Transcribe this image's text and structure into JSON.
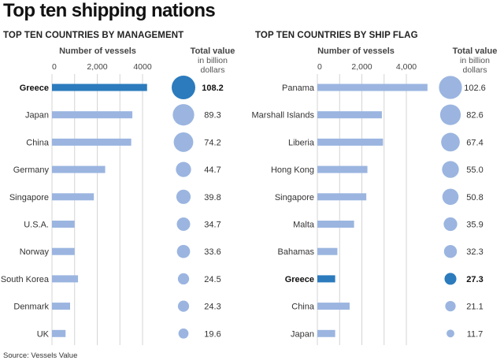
{
  "title": "Top ten shipping nations",
  "source": "Source: Vessels Value",
  "colors": {
    "bar": "#9bb5e0",
    "highlight": "#2b7bbd",
    "grid": "#d4d4d4"
  },
  "value_header": [
    "Total value",
    "in billion",
    "dollars"
  ],
  "chart_data": [
    {
      "type": "bar",
      "orientation": "horizontal",
      "subtitle": "TOP TEN COUNTRIES BY MANAGEMENT",
      "xlabel": "Number of vessels",
      "xlim": [
        0,
        4000
      ],
      "xticks": [
        0,
        2000,
        4000
      ],
      "xtick_labels": [
        "0",
        "2,000",
        "4000"
      ],
      "grid": true,
      "highlight": "Greece",
      "categories": [
        "Greece",
        "Japan",
        "China",
        "Germany",
        "Singapore",
        "U.S.A.",
        "Norway",
        "South Korea",
        "Denmark",
        "UK"
      ],
      "values": [
        4200,
        3550,
        3500,
        2350,
        1850,
        1000,
        1000,
        1150,
        800,
        600
      ],
      "total_value_billion_dollars": [
        "108.2",
        "89.3",
        "74.2",
        "44.7",
        "39.8",
        "34.7",
        "33.6",
        "24.5",
        "24.3",
        "19.6"
      ]
    },
    {
      "type": "bar",
      "orientation": "horizontal",
      "subtitle": "TOP TEN COUNTRIES BY SHIP FLAG",
      "xlabel": "Number of vessels",
      "xlim": [
        0,
        4000
      ],
      "xticks": [
        0,
        2000,
        4000
      ],
      "xtick_labels": [
        "0",
        "2,000",
        "4,000"
      ],
      "grid": true,
      "highlight": "Greece",
      "categories": [
        "Panama",
        "Marshall Islands",
        "Liberia",
        "Hong Kong",
        "Singapore",
        "Malta",
        "Bahamas",
        "Greece",
        "China",
        "Japan"
      ],
      "values": [
        4950,
        2900,
        2950,
        2250,
        2200,
        1650,
        900,
        800,
        1450,
        800
      ],
      "total_value_billion_dollars": [
        "102.6",
        "82.6",
        "67.4",
        "55.0",
        "50.8",
        "35.9",
        "32.3",
        "27.3",
        "21.1",
        "11.7"
      ]
    }
  ]
}
